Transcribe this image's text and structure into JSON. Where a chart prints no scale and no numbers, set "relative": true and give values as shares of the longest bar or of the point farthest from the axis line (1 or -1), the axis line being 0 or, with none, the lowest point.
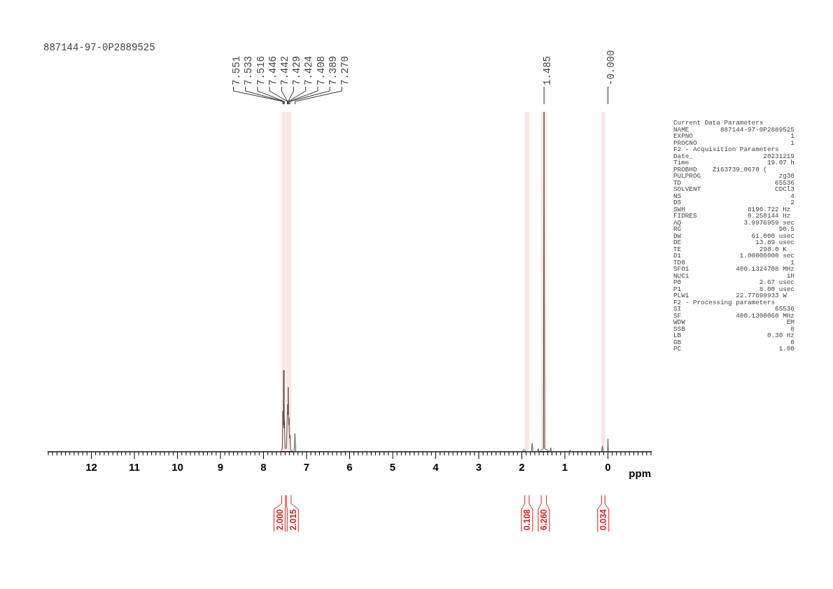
{
  "chart_data": {
    "type": "line",
    "title": "887144-97-0P2889525",
    "xlabel": "ppm",
    "relative": true,
    "grid": false,
    "legend": false,
    "marker": "none",
    "line_style": "solid",
    "xlim": [
      13,
      -1
    ],
    "xticks": [
      {
        "value": 13,
        "label": null
      },
      {
        "value": 12.9,
        "label": null
      },
      {
        "value": 12.8,
        "label": null
      },
      {
        "value": 12.7,
        "label": null
      },
      {
        "value": 12.6,
        "label": null
      },
      {
        "value": 12.5,
        "label": null
      },
      {
        "value": 12.4,
        "label": null
      },
      {
        "value": 12.3,
        "label": null
      },
      {
        "value": 12.2,
        "label": null
      },
      {
        "value": 12.1,
        "label": null
      },
      12,
      {
        "value": 11.9,
        "label": null
      },
      {
        "value": 11.8,
        "label": null
      },
      {
        "value": 11.7,
        "label": null
      },
      {
        "value": 11.6,
        "label": null
      },
      {
        "value": 11.5,
        "label": null
      },
      {
        "value": 11.4,
        "label": null
      },
      {
        "value": 11.3,
        "label": null
      },
      {
        "value": 11.2,
        "label": null
      },
      {
        "value": 11.1,
        "label": null
      },
      11,
      {
        "value": 10.9,
        "label": null
      },
      {
        "value": 10.8,
        "label": null
      },
      {
        "value": 10.7,
        "label": null
      },
      {
        "value": 10.6,
        "label": null
      },
      {
        "value": 10.5,
        "label": null
      },
      {
        "value": 10.4,
        "label": null
      },
      {
        "value": 10.3,
        "label": null
      },
      {
        "value": 10.2,
        "label": null
      },
      {
        "value": 10.1,
        "label": null
      },
      10,
      {
        "value": 9.9,
        "label": null
      },
      {
        "value": 9.8,
        "label": null
      },
      {
        "value": 9.7,
        "label": null
      },
      {
        "value": 9.6,
        "label": null
      },
      {
        "value": 9.5,
        "label": null
      },
      {
        "value": 9.4,
        "label": null
      },
      {
        "value": 9.3,
        "label": null
      },
      {
        "value": 9.2,
        "label": null
      },
      {
        "value": 9.1,
        "label": null
      },
      9,
      {
        "value": 8.9,
        "label": null
      },
      {
        "value": 8.8,
        "label": null
      },
      {
        "value": 8.7,
        "label": null
      },
      {
        "value": 8.6,
        "label": null
      },
      {
        "value": 8.5,
        "label": null
      },
      {
        "value": 8.4,
        "label": null
      },
      {
        "value": 8.3,
        "label": null
      },
      {
        "value": 8.2,
        "label": null
      },
      {
        "value": 8.1,
        "label": null
      },
      8,
      {
        "value": 7.9,
        "label": null
      },
      {
        "value": 7.8,
        "label": null
      },
      {
        "value": 7.7,
        "label": null
      },
      {
        "value": 7.6,
        "label": null
      },
      {
        "value": 7.5,
        "label": null
      },
      {
        "value": 7.4,
        "label": null
      },
      {
        "value": 7.3,
        "label": null
      },
      {
        "value": 7.2,
        "label": null
      },
      {
        "value": 7.1,
        "label": null
      },
      7,
      {
        "value": 6.9,
        "label": null
      },
      {
        "value": 6.8,
        "label": null
      },
      {
        "value": 6.7,
        "label": null
      },
      {
        "value": 6.6,
        "label": null
      },
      {
        "value": 6.5,
        "label": null
      },
      {
        "value": 6.4,
        "label": null
      },
      {
        "value": 6.3,
        "label": null
      },
      {
        "value": 6.2,
        "label": null
      },
      {
        "value": 6.1,
        "label": null
      },
      6,
      {
        "value": 5.9,
        "label": null
      },
      {
        "value": 5.8,
        "label": null
      },
      {
        "value": 5.7,
        "label": null
      },
      {
        "value": 5.6,
        "label": null
      },
      {
        "value": 5.5,
        "label": null
      },
      {
        "value": 5.4,
        "label": null
      },
      {
        "value": 5.3,
        "label": null
      },
      {
        "value": 5.2,
        "label": null
      },
      {
        "value": 5.1,
        "label": null
      },
      5,
      {
        "value": 4.9,
        "label": null
      },
      {
        "value": 4.8,
        "label": null
      },
      {
        "value": 4.7,
        "label": null
      },
      {
        "value": 4.6,
        "label": null
      },
      {
        "value": 4.5,
        "label": null
      },
      {
        "value": 4.4,
        "label": null
      },
      {
        "value": 4.3,
        "label": null
      },
      {
        "value": 4.2,
        "label": null
      },
      {
        "value": 4.1,
        "label": null
      },
      4,
      {
        "value": 3.9,
        "label": null
      },
      {
        "value": 3.8,
        "label": null
      },
      {
        "value": 3.7,
        "label": null
      },
      {
        "value": 3.6,
        "label": null
      },
      {
        "value": 3.5,
        "label": null
      },
      {
        "value": 3.4,
        "label": null
      },
      {
        "value": 3.3,
        "label": null
      },
      {
        "value": 3.2,
        "label": null
      },
      {
        "value": 3.1,
        "label": null
      },
      3,
      {
        "value": 2.9,
        "label": null
      },
      {
        "value": 2.8,
        "label": null
      },
      {
        "value": 2.7,
        "label": null
      },
      {
        "value": 2.6,
        "label": null
      },
      {
        "value": 2.5,
        "label": null
      },
      {
        "value": 2.4,
        "label": null
      },
      {
        "value": 2.3,
        "label": null
      },
      {
        "value": 2.2,
        "label": null
      },
      {
        "value": 2.1,
        "label": null
      },
      2,
      {
        "value": 1.9,
        "label": null
      },
      {
        "value": 1.8,
        "label": null
      },
      {
        "value": 1.7,
        "label": null
      },
      {
        "value": 1.6,
        "label": null
      },
      {
        "value": 1.5,
        "label": null
      },
      {
        "value": 1.4,
        "label": null
      },
      {
        "value": 1.3,
        "label": null
      },
      {
        "value": 1.2,
        "label": null
      },
      {
        "value": 1.1,
        "label": null
      },
      1,
      {
        "value": 0.9,
        "label": null
      },
      {
        "value": 0.8,
        "label": null
      },
      {
        "value": 0.7,
        "label": null
      },
      {
        "value": 0.6,
        "label": null
      },
      {
        "value": 0.5,
        "label": null
      },
      {
        "value": 0.4,
        "label": null
      },
      {
        "value": 0.3,
        "label": null
      },
      {
        "value": 0.2,
        "label": null
      },
      {
        "value": 0.1,
        "label": null
      },
      0,
      {
        "value": -0.1,
        "label": null
      },
      {
        "value": -0.2,
        "label": null
      },
      {
        "value": -0.3,
        "label": null
      },
      {
        "value": -0.4,
        "label": null
      },
      {
        "value": -0.5,
        "label": null
      },
      {
        "value": -0.6,
        "label": null
      },
      {
        "value": -0.7,
        "label": null
      },
      {
        "value": -0.8,
        "label": null
      },
      {
        "value": -0.9,
        "label": null
      },
      {
        "value": -1,
        "label": null
      }
    ],
    "x": [
      13,
      8.0,
      7.6,
      7.565,
      7.551,
      7.542,
      7.533,
      7.524,
      7.516,
      7.5,
      7.47,
      7.446,
      7.442,
      7.435,
      7.429,
      7.424,
      7.415,
      7.408,
      7.398,
      7.389,
      7.37,
      7.29,
      7.27,
      7.25,
      2.0,
      1.95,
      1.9,
      1.78,
      1.76,
      1.74,
      1.64,
      1.62,
      1.6,
      1.5,
      1.485,
      1.47,
      1.35,
      1.33,
      1.31,
      0.9,
      0.88,
      0.86,
      0.15,
      0.13,
      0.11,
      0.01,
      0,
      -0.01,
      -1
    ],
    "series": [
      {
        "color": "#555555",
        "values": [
          0,
          0,
          0,
          0.01,
          0.12,
          0.08,
          0.24,
          0.07,
          0.09,
          0.01,
          0.01,
          0.12,
          0.14,
          0.11,
          0.19,
          0.17,
          0.08,
          0.1,
          0.04,
          0.05,
          0.005,
          0,
          0.054,
          0,
          0,
          0.008,
          0,
          0,
          0.025,
          0,
          0,
          0.01,
          0,
          0.01,
          1,
          0.01,
          0,
          0.012,
          0,
          0,
          0.006,
          0,
          0,
          0.017,
          0,
          0,
          0.038,
          0,
          0
        ]
      }
    ],
    "bands": [
      {
        "axis": "x",
        "from": 7.58,
        "to": 7.49,
        "label": "2.000",
        "color": "#d42020"
      },
      {
        "axis": "x",
        "from": 7.47,
        "to": 7.36,
        "label": "2.015",
        "color": "#d42020"
      },
      {
        "axis": "x",
        "from": 1.93,
        "to": 1.83,
        "label": "0.108",
        "color": "#d42020"
      },
      {
        "axis": "x",
        "from": 1.55,
        "to": 1.43,
        "label": "6.260",
        "color": "#d42020"
      },
      {
        "axis": "x",
        "from": 0.15,
        "to": 0.07,
        "label": "0.034",
        "color": "#d42020"
      }
    ],
    "annotations": [
      {
        "text": "7.551",
        "x": 7.551
      },
      {
        "text": "7.533",
        "x": 7.533
      },
      {
        "text": "7.516",
        "x": 7.516
      },
      {
        "text": "7.446",
        "x": 7.446
      },
      {
        "text": "7.442",
        "x": 7.442
      },
      {
        "text": "7.429",
        "x": 7.429
      },
      {
        "text": "7.424",
        "x": 7.424
      },
      {
        "text": "7.408",
        "x": 7.408
      },
      {
        "text": "7.389",
        "x": 7.389
      },
      {
        "text": "7.270",
        "x": 7.27
      },
      {
        "text": "1.485",
        "x": 1.485
      },
      {
        "text": "-0.000",
        "x": 0
      },
      "Current Data Parameters",
      "NAME        887144-97-0P2889525",
      "EXPNO                         1",
      "PROCNO                        1",
      "F2 - Acquisition Parameters",
      "Date_                  20231219",
      "Time                    19.07 h",
      "PROBHD    Z163739_0670 (",
      "PULPROG                    zg30",
      "TD                        65536",
      "SOLVENT                   CDCl3",
      "NS                            4",
      "DS                            2",
      "SWH                8196.722 Hz",
      "FIDRES             0.250144 Hz",
      "AQ                3.9976959 sec",
      "RG                         90.5",
      "DW                  61.000 usec",
      "DE                   13.89 usec",
      "TE                    298.0 K",
      "D1               1.00000000 sec",
      "TD0                           1",
      "SFO1            400.1324708 MHz",
      "NUC1                         1H",
      "P0                    2.67 usec",
      "P1                    8.00 usec",
      "PLW1            22.77899933 W",
      "F2 - Processing parameters",
      "SI                        65536",
      "SF              400.1300060 MHz",
      "WDW                          EM",
      "SSB                           0",
      "LB                      0.30 Hz",
      "GB                            0",
      "PC                         1.00"
    ]
  }
}
